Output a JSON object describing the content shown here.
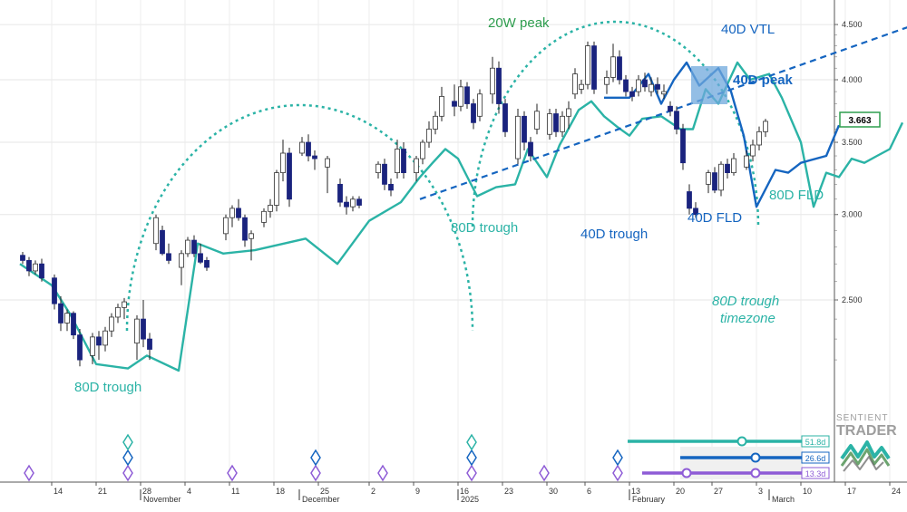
{
  "chart_data": {
    "type": "candlestick",
    "y_axis": {
      "ticks": [
        "4.500",
        "4.000",
        "3.500",
        "3.000",
        "2.500"
      ],
      "current_price": "3.663",
      "scale": "log",
      "side": "right"
    },
    "x_axis": {
      "day_ticks": [
        "14",
        "21",
        "28",
        "4",
        "11",
        "18",
        "25",
        "2",
        "9",
        "16",
        "23",
        "30",
        "6",
        "13",
        "20",
        "27",
        "3",
        "10",
        "17",
        "24",
        "3",
        "10",
        "17"
      ],
      "month_labels": [
        "November",
        "December",
        "2025",
        "February",
        "March"
      ]
    },
    "grid": true,
    "colors": {
      "candle_down": "#1a237e",
      "candle_up": "#ffffff",
      "cycle_80d": "#2bb3a6",
      "cycle_40d": "#1565c0",
      "cycle_20w": "#2e9d4e",
      "cycle_13d": "#8e5bd6",
      "peak_box": "#6fa8dc"
    },
    "annotations": {
      "peak_20w": "20W peak",
      "vtl_40d": "40D VTL",
      "peak_40d": "40D peak",
      "trough_80d_left": "80D trough",
      "trough_80d_mid": "80D trough",
      "trough_40d": "40D trough",
      "fld_40d": "40D FLD",
      "fld_80d": "80D FLD",
      "trough_80d_timezone_1": "80D trough",
      "trough_80d_timezone_2": "timezone"
    },
    "cycle_periods": [
      {
        "label": "51.8d",
        "color": "#2bb3a6"
      },
      {
        "label": "26.6d",
        "color": "#1565c0"
      },
      {
        "label": "13.3d",
        "color": "#8e5bd6"
      }
    ],
    "fld_80d": [
      [
        0,
        2.7
      ],
      [
        5,
        2.58
      ],
      [
        8,
        2.42
      ],
      [
        12,
        2.18
      ],
      [
        17,
        2.16
      ],
      [
        20,
        2.22
      ],
      [
        25,
        2.15
      ],
      [
        28,
        2.82
      ],
      [
        32,
        2.76
      ],
      [
        37,
        2.78
      ],
      [
        45,
        2.85
      ],
      [
        50,
        2.7
      ],
      [
        55,
        2.96
      ],
      [
        60,
        3.08
      ],
      [
        63,
        3.25
      ],
      [
        65,
        3.35
      ],
      [
        67,
        3.45
      ],
      [
        69,
        3.38
      ],
      [
        72,
        3.12
      ],
      [
        75,
        3.18
      ],
      [
        78,
        3.2
      ],
      [
        80,
        3.45
      ],
      [
        83,
        3.25
      ],
      [
        85,
        3.48
      ],
      [
        88,
        3.75
      ],
      [
        90,
        3.82
      ],
      [
        92,
        3.7
      ],
      [
        94,
        3.62
      ],
      [
        96,
        3.55
      ],
      [
        98,
        3.68
      ],
      [
        101,
        3.7
      ],
      [
        104,
        3.6
      ],
      [
        106,
        3.6
      ],
      [
        108,
        3.92
      ],
      [
        110,
        3.8
      ],
      [
        113,
        4.15
      ],
      [
        115,
        4.0
      ],
      [
        118,
        4.05
      ],
      [
        120,
        3.85
      ],
      [
        123,
        3.5
      ],
      [
        125,
        3.05
      ],
      [
        127,
        3.28
      ],
      [
        129,
        3.25
      ],
      [
        131,
        3.38
      ],
      [
        133,
        3.35
      ],
      [
        135,
        3.4
      ],
      [
        137,
        3.45
      ],
      [
        139,
        3.65
      ]
    ],
    "fld_40d": [
      [
        92,
        3.85
      ],
      [
        96,
        3.85
      ],
      [
        99,
        4.05
      ],
      [
        101,
        3.8
      ],
      [
        103,
        4.0
      ],
      [
        105,
        4.15
      ],
      [
        107,
        3.95
      ],
      [
        110,
        4.1
      ],
      [
        112,
        3.9
      ],
      [
        114,
        3.55
      ],
      [
        116,
        3.05
      ],
      [
        119,
        3.3
      ],
      [
        121,
        3.28
      ],
      [
        123,
        3.35
      ],
      [
        127,
        3.4
      ],
      [
        129,
        3.63
      ]
    ],
    "vtl_40d": [
      [
        63,
        3.1
      ],
      [
        141,
        4.5
      ]
    ],
    "candles": [
      [
        0,
        2.75,
        2.77,
        2.7,
        2.72
      ],
      [
        1,
        2.72,
        2.74,
        2.63,
        2.66
      ],
      [
        2,
        2.66,
        2.72,
        2.64,
        2.7
      ],
      [
        3,
        2.7,
        2.73,
        2.6,
        2.62
      ],
      [
        5,
        2.62,
        2.64,
        2.45,
        2.48
      ],
      [
        6,
        2.48,
        2.52,
        2.34,
        2.38
      ],
      [
        7,
        2.38,
        2.45,
        2.34,
        2.43
      ],
      [
        8,
        2.43,
        2.44,
        2.3,
        2.32
      ],
      [
        9,
        2.32,
        2.35,
        2.17,
        2.2
      ],
      [
        11,
        2.22,
        2.33,
        2.18,
        2.31
      ],
      [
        12,
        2.31,
        2.34,
        2.2,
        2.27
      ],
      [
        13,
        2.27,
        2.36,
        2.24,
        2.34
      ],
      [
        14,
        2.34,
        2.43,
        2.31,
        2.41
      ],
      [
        15,
        2.41,
        2.48,
        2.38,
        2.46
      ],
      [
        16,
        2.46,
        2.51,
        2.4,
        2.49
      ],
      [
        18,
        2.28,
        2.42,
        2.2,
        2.4
      ],
      [
        19,
        2.4,
        2.5,
        2.26,
        2.3
      ],
      [
        20,
        2.3,
        2.33,
        2.2,
        2.25
      ],
      [
        21,
        2.82,
        3.0,
        2.78,
        2.98
      ],
      [
        22,
        2.9,
        2.93,
        2.75,
        2.76
      ],
      [
        23,
        2.76,
        2.82,
        2.7,
        2.72
      ],
      [
        25,
        2.68,
        2.78,
        2.58,
        2.76
      ],
      [
        26,
        2.76,
        2.86,
        2.74,
        2.84
      ],
      [
        27,
        2.84,
        2.87,
        2.74,
        2.76
      ],
      [
        28,
        2.76,
        2.82,
        2.7,
        2.71
      ],
      [
        29,
        2.72,
        2.74,
        2.66,
        2.68
      ],
      [
        32,
        2.88,
        3.0,
        2.84,
        2.98
      ],
      [
        33,
        2.98,
        3.06,
        2.92,
        3.04
      ],
      [
        34,
        3.04,
        3.1,
        2.96,
        2.98
      ],
      [
        35,
        2.98,
        3.0,
        2.8,
        2.84
      ],
      [
        36,
        2.85,
        2.9,
        2.72,
        2.88
      ],
      [
        38,
        2.95,
        3.04,
        2.92,
        3.02
      ],
      [
        39,
        3.02,
        3.1,
        2.98,
        3.06
      ],
      [
        40,
        3.06,
        3.3,
        3.02,
        3.28
      ],
      [
        41,
        3.28,
        3.52,
        3.22,
        3.42
      ],
      [
        42,
        3.42,
        3.46,
        3.05,
        3.1
      ],
      [
        44,
        3.42,
        3.54,
        3.4,
        3.5
      ],
      [
        45,
        3.5,
        3.56,
        3.36,
        3.4
      ],
      [
        46,
        3.4,
        3.44,
        3.3,
        3.38
      ],
      [
        48,
        3.32,
        3.4,
        3.14,
        3.38
      ],
      [
        50,
        3.2,
        3.24,
        3.05,
        3.08
      ],
      [
        51,
        3.08,
        3.12,
        3.0,
        3.05
      ],
      [
        52,
        3.05,
        3.12,
        3.02,
        3.1
      ],
      [
        53,
        3.1,
        3.12,
        3.04,
        3.06
      ],
      [
        56,
        3.28,
        3.36,
        3.24,
        3.34
      ],
      [
        57,
        3.34,
        3.38,
        3.16,
        3.2
      ],
      [
        58,
        3.2,
        3.24,
        3.12,
        3.16
      ],
      [
        59,
        3.28,
        3.52,
        3.24,
        3.45
      ],
      [
        60,
        3.45,
        3.5,
        3.24,
        3.28
      ],
      [
        62,
        3.28,
        3.4,
        3.22,
        3.38
      ],
      [
        63,
        3.38,
        3.52,
        3.34,
        3.5
      ],
      [
        64,
        3.5,
        3.66,
        3.46,
        3.6
      ],
      [
        65,
        3.6,
        3.74,
        3.56,
        3.7
      ],
      [
        66,
        3.7,
        3.94,
        3.66,
        3.86
      ],
      [
        68,
        3.82,
        3.96,
        3.7,
        3.78
      ],
      [
        69,
        3.78,
        4.0,
        3.74,
        3.94
      ],
      [
        70,
        3.94,
        3.98,
        3.76,
        3.8
      ],
      [
        71,
        3.8,
        3.84,
        3.6,
        3.65
      ],
      [
        72,
        3.7,
        3.92,
        3.66,
        3.88
      ],
      [
        74,
        3.88,
        4.2,
        3.8,
        4.1
      ],
      [
        75,
        4.1,
        4.16,
        3.72,
        3.8
      ],
      [
        76,
        3.8,
        3.84,
        3.54,
        3.58
      ],
      [
        78,
        3.38,
        3.76,
        3.34,
        3.7
      ],
      [
        79,
        3.7,
        3.74,
        3.44,
        3.5
      ],
      [
        80,
        3.5,
        3.54,
        3.36,
        3.4
      ],
      [
        81,
        3.6,
        3.8,
        3.56,
        3.74
      ],
      [
        83,
        3.56,
        3.76,
        3.52,
        3.72
      ],
      [
        84,
        3.72,
        3.76,
        3.54,
        3.58
      ],
      [
        85,
        3.58,
        3.74,
        3.54,
        3.7
      ],
      [
        86,
        3.7,
        3.82,
        3.6,
        3.76
      ],
      [
        87,
        3.88,
        4.1,
        3.84,
        4.05
      ],
      [
        88,
        3.92,
        4.0,
        3.88,
        3.96
      ],
      [
        89,
        3.96,
        4.34,
        3.92,
        4.3
      ],
      [
        90,
        4.3,
        4.34,
        3.88,
        3.92
      ],
      [
        92,
        3.96,
        4.08,
        3.88,
        4.02
      ],
      [
        93,
        4.02,
        4.32,
        3.98,
        4.2
      ],
      [
        94,
        4.2,
        4.26,
        3.96,
        4.0
      ],
      [
        95,
        4.0,
        4.04,
        3.86,
        3.9
      ],
      [
        96,
        3.9,
        3.94,
        3.82,
        3.86
      ],
      [
        97,
        3.9,
        4.04,
        3.86,
        4.0
      ],
      [
        98,
        4.0,
        4.06,
        3.9,
        3.94
      ],
      [
        99,
        3.9,
        4.02,
        3.86,
        3.96
      ],
      [
        100,
        3.96,
        4.02,
        3.88,
        3.92
      ],
      [
        101,
        3.88,
        3.96,
        3.84,
        3.9
      ],
      [
        102,
        3.78,
        3.82,
        3.7,
        3.74
      ],
      [
        103,
        3.74,
        3.78,
        3.56,
        3.6
      ],
      [
        104,
        3.6,
        3.64,
        3.3,
        3.35
      ],
      [
        105,
        3.15,
        3.2,
        3.0,
        3.04
      ],
      [
        106,
        3.04,
        3.08,
        2.98,
        3.0
      ],
      [
        108,
        3.2,
        3.3,
        3.14,
        3.28
      ],
      [
        109,
        3.28,
        3.32,
        3.14,
        3.16
      ],
      [
        110,
        3.16,
        3.36,
        3.12,
        3.34
      ],
      [
        111,
        3.34,
        3.38,
        3.24,
        3.28
      ],
      [
        112,
        3.28,
        3.42,
        3.26,
        3.38
      ],
      [
        114,
        3.32,
        3.44,
        3.3,
        3.4
      ],
      [
        115,
        3.4,
        3.52,
        3.36,
        3.48
      ],
      [
        116,
        3.48,
        3.62,
        3.44,
        3.58
      ],
      [
        117,
        3.58,
        3.68,
        3.54,
        3.66
      ]
    ]
  }
}
